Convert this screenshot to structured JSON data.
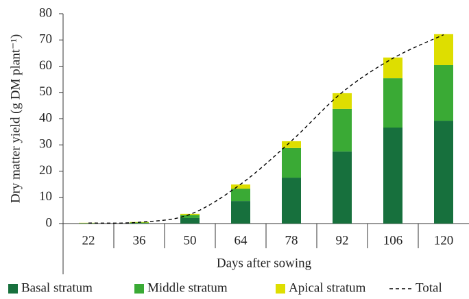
{
  "chart_data": {
    "type": "bar",
    "stacked": true,
    "x_label": "Days after sowing",
    "y_label": "Dry matter yield (g DM plant⁻¹)",
    "categories": [
      "22",
      "36",
      "50",
      "64",
      "78",
      "92",
      "106",
      "120"
    ],
    "series": [
      {
        "name": "Basal stratum",
        "color": "#17703d",
        "values": [
          0.1,
          0.2,
          2.1,
          8.6,
          17.5,
          27.5,
          36.6,
          39.2
        ]
      },
      {
        "name": "Middle stratum",
        "color": "#3aaa35",
        "values": [
          0.1,
          0.2,
          1.2,
          4.7,
          11.3,
          16.2,
          18.8,
          21.2
        ]
      },
      {
        "name": "Apical stratum",
        "color": "#dede00",
        "values": [
          0.1,
          0.2,
          0.4,
          1.6,
          2.6,
          6.0,
          7.9,
          11.8
        ]
      }
    ],
    "line_series": {
      "name": "Total",
      "color": "#000000",
      "dashed": true,
      "values": [
        0.2,
        0.5,
        3.5,
        15,
        31.5,
        50,
        63,
        72
      ]
    },
    "ylim": [
      0,
      80
    ],
    "yticks": [
      0,
      10,
      20,
      30,
      40,
      50,
      60,
      70,
      80
    ],
    "grid": false,
    "legend": "bottom"
  }
}
